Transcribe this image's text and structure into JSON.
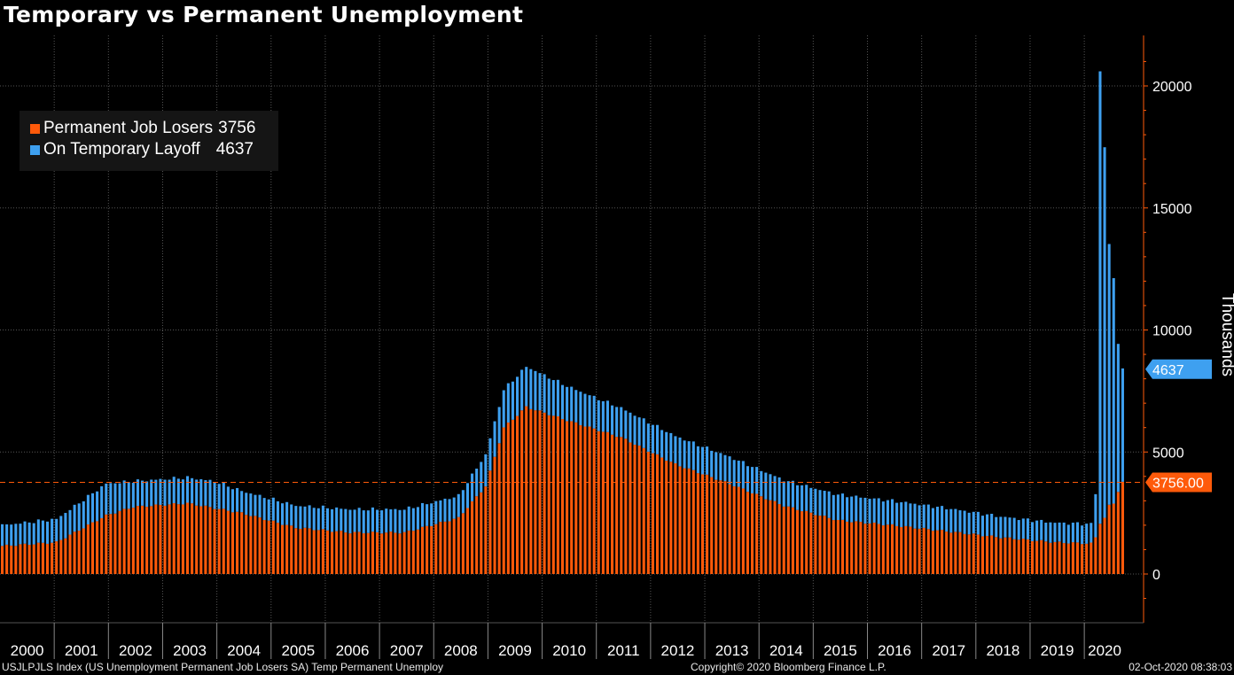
{
  "title": "Temporary vs Permanent Unemployment",
  "colors": {
    "permanent": "#ff5a0a",
    "temporary": "#3ea0f0",
    "grid": "#555555",
    "axis": "#ff5a0a"
  },
  "legend": {
    "items": [
      {
        "label": "Permanent Job Losers",
        "value": "3756",
        "color": "#ff5a0a"
      },
      {
        "label": "On Temporary Layoff",
        "value": "4637",
        "color": "#3ea0f0"
      }
    ]
  },
  "footer": {
    "left": "USJLPJLS Index (US Unemployment Permanent Job Losers SA) Temp Permanent Unemploy",
    "center": "Copyright© 2020 Bloomberg Finance L.P.",
    "right": "02-Oct-2020 08:38:03"
  },
  "chart_data": {
    "type": "bar",
    "stacked": true,
    "title": "Temporary vs Permanent Unemployment",
    "ylabel": "Thousands",
    "ylim": [
      -2000,
      22000
    ],
    "yticks": [
      0,
      5000,
      10000,
      15000,
      20000
    ],
    "year_labels": [
      "2000",
      "2001",
      "2002",
      "2003",
      "2004",
      "2005",
      "2006",
      "2007",
      "2008",
      "2009",
      "2010",
      "2011",
      "2012",
      "2013",
      "2014",
      "2015",
      "2016",
      "2017",
      "2018",
      "2019",
      "2020"
    ],
    "start": "2000-01",
    "end": "2020-09",
    "frequency": "monthly",
    "grid": true,
    "legend_position": "top-left",
    "last_value_labels": {
      "temporary": "4637",
      "permanent": "3756.00"
    },
    "reference_line": 3756,
    "series": [
      {
        "name": "Permanent Job Losers",
        "color": "#ff5a0a",
        "keypoints": [
          [
            "2000-01",
            1150
          ],
          [
            "2001-01",
            1300
          ],
          [
            "2001-12",
            2400
          ],
          [
            "2002-06",
            2750
          ],
          [
            "2003-06",
            2900
          ],
          [
            "2003-12",
            2700
          ],
          [
            "2004-06",
            2500
          ],
          [
            "2005-06",
            1900
          ],
          [
            "2006-06",
            1700
          ],
          [
            "2007-06",
            1700
          ],
          [
            "2008-06",
            2300
          ],
          [
            "2008-12",
            3600
          ],
          [
            "2009-04",
            6000
          ],
          [
            "2009-09",
            6850
          ],
          [
            "2010-06",
            6300
          ],
          [
            "2011-06",
            5600
          ],
          [
            "2012-06",
            4500
          ],
          [
            "2013-06",
            3700
          ],
          [
            "2014-06",
            2800
          ],
          [
            "2015-06",
            2200
          ],
          [
            "2016-06",
            2000
          ],
          [
            "2017-06",
            1750
          ],
          [
            "2018-06",
            1500
          ],
          [
            "2019-06",
            1300
          ],
          [
            "2020-02",
            1250
          ],
          [
            "2020-03",
            1500
          ],
          [
            "2020-04",
            2100
          ],
          [
            "2020-05",
            2300
          ],
          [
            "2020-06",
            2800
          ],
          [
            "2020-07",
            2900
          ],
          [
            "2020-08",
            3400
          ],
          [
            "2020-09",
            3756
          ]
        ]
      },
      {
        "name": "On Temporary Layoff",
        "color": "#3ea0f0",
        "keypoints": [
          [
            "2000-01",
            850
          ],
          [
            "2001-01",
            950
          ],
          [
            "2001-12",
            1300
          ],
          [
            "2002-06",
            1050
          ],
          [
            "2003-06",
            1050
          ],
          [
            "2003-12",
            1100
          ],
          [
            "2004-06",
            900
          ],
          [
            "2005-06",
            900
          ],
          [
            "2006-06",
            950
          ],
          [
            "2007-06",
            950
          ],
          [
            "2008-06",
            900
          ],
          [
            "2008-12",
            1300
          ],
          [
            "2009-04",
            1550
          ],
          [
            "2009-09",
            1650
          ],
          [
            "2010-06",
            1400
          ],
          [
            "2011-06",
            1200
          ],
          [
            "2012-06",
            1150
          ],
          [
            "2013-06",
            1100
          ],
          [
            "2014-06",
            1050
          ],
          [
            "2015-06",
            1050
          ],
          [
            "2016-06",
            1000
          ],
          [
            "2017-06",
            950
          ],
          [
            "2018-06",
            850
          ],
          [
            "2019-06",
            800
          ],
          [
            "2020-02",
            800
          ],
          [
            "2020-03",
            1800
          ],
          [
            "2020-04",
            18500
          ],
          [
            "2020-05",
            15200
          ],
          [
            "2020-06",
            10700
          ],
          [
            "2020-07",
            9200
          ],
          [
            "2020-08",
            6100
          ],
          [
            "2020-09",
            4637
          ]
        ]
      }
    ]
  }
}
